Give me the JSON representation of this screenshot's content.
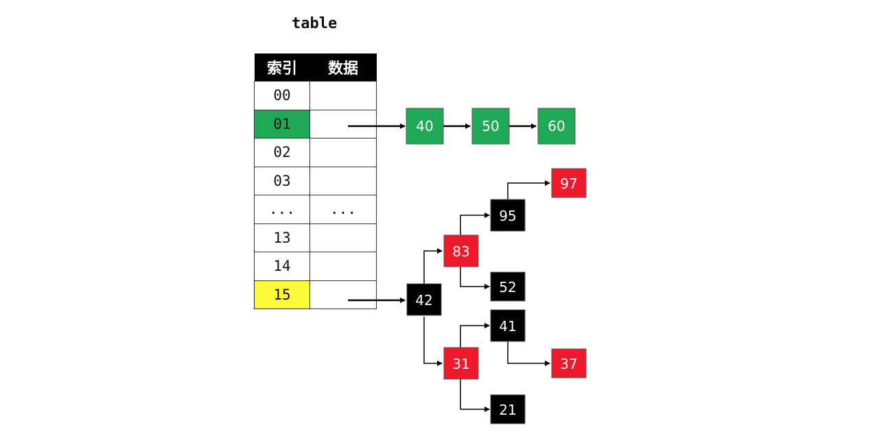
{
  "title": "table",
  "table": {
    "headers": [
      "索引",
      "数据"
    ],
    "rows": [
      {
        "index": "00",
        "data": ""
      },
      {
        "index": "01",
        "data": ""
      },
      {
        "index": "02",
        "data": ""
      },
      {
        "index": "03",
        "data": ""
      },
      {
        "index": "...",
        "data": "..."
      },
      {
        "index": "13",
        "data": ""
      },
      {
        "index": "14",
        "data": ""
      },
      {
        "index": "15",
        "data": ""
      }
    ]
  },
  "linked_list": [
    "40",
    "50",
    "60"
  ],
  "tree_nodes": {
    "n42": {
      "label": "42",
      "color": "black"
    },
    "n83": {
      "label": "83",
      "color": "red"
    },
    "n95": {
      "label": "95",
      "color": "black"
    },
    "n97": {
      "label": "97",
      "color": "red"
    },
    "n52": {
      "label": "52",
      "color": "black"
    },
    "n31": {
      "label": "31",
      "color": "red"
    },
    "n41": {
      "label": "41",
      "color": "black"
    },
    "n37": {
      "label": "37",
      "color": "red"
    },
    "n21": {
      "label": "21",
      "color": "black"
    }
  },
  "colors": {
    "green": "#1fa855",
    "yellow": "#fbfb3a",
    "red": "#f0182b",
    "black": "#000000"
  }
}
